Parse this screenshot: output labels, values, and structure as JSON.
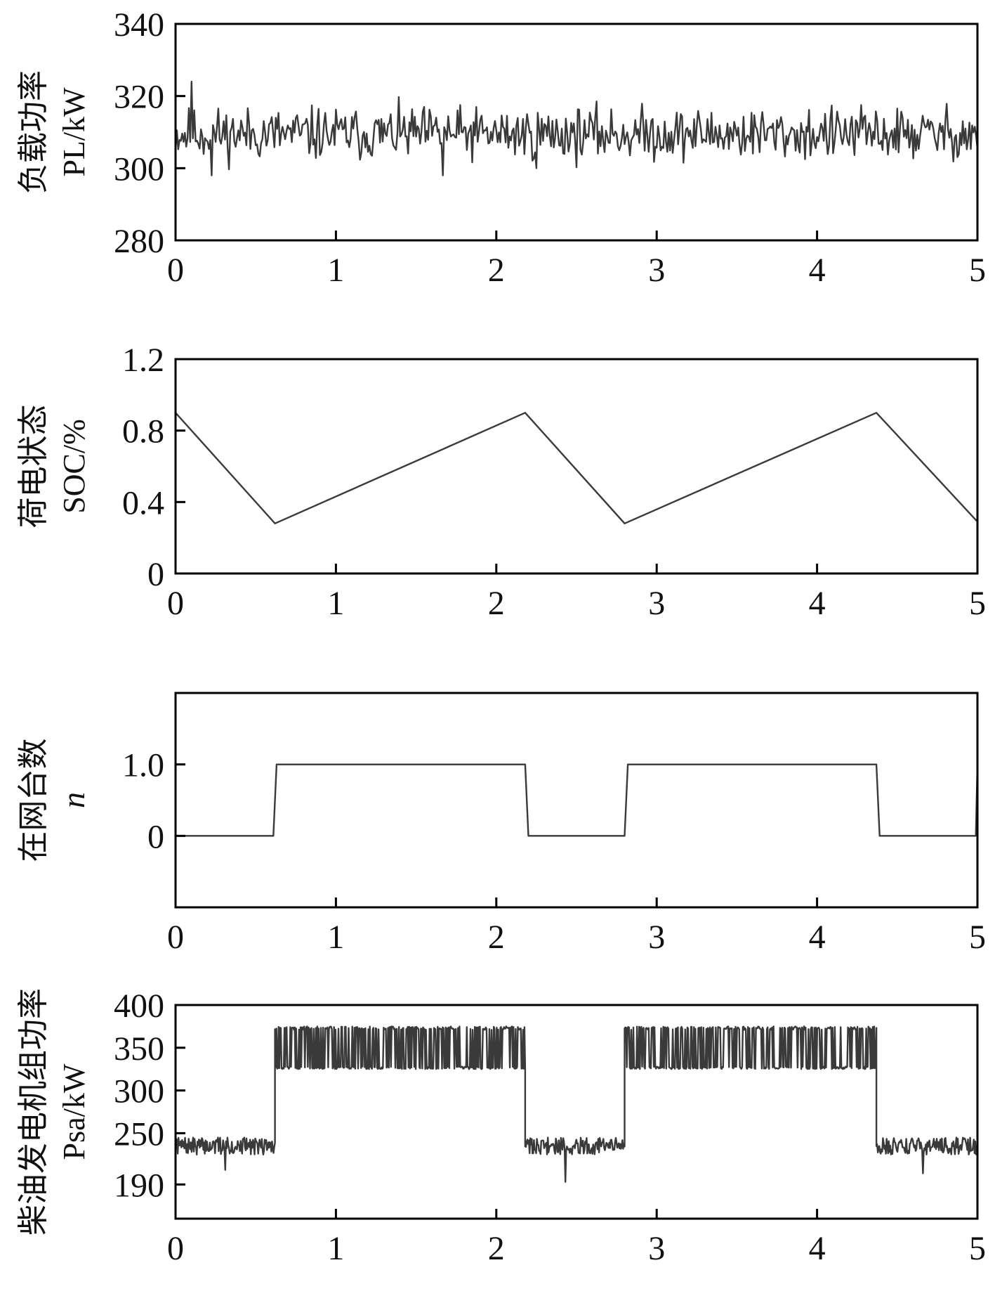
{
  "chart_data": [
    {
      "type": "line",
      "id": "load",
      "ylabel_cn": "负载功率",
      "ylabel_en": "PL/kW",
      "ylabel_italic": false,
      "xlim": [
        0,
        5
      ],
      "ylim": [
        280,
        340
      ],
      "xticks": [
        0,
        1,
        2,
        3,
        4,
        5
      ],
      "yticks": [
        280,
        300,
        320,
        340
      ],
      "ytick_labels": [
        "280",
        "300",
        "320",
        "340"
      ],
      "color": "#3a3a3a",
      "noise": {
        "base": 309.5,
        "amp": 5.5,
        "seed": 11,
        "samples": 600
      },
      "series": []
    },
    {
      "type": "line",
      "id": "soc",
      "ylabel_cn": "荷电状态",
      "ylabel_en": "SOC/%",
      "ylabel_italic": false,
      "xlim": [
        0,
        5
      ],
      "ylim": [
        0,
        1.2
      ],
      "xticks": [
        0,
        1,
        2,
        3,
        4,
        5
      ],
      "yticks": [
        0,
        0.4,
        0.8,
        1.2
      ],
      "ytick_labels": [
        "0",
        "0.4",
        "0.8",
        "1.2"
      ],
      "color": "#3a3a3a",
      "series": [
        {
          "x": [
            0,
            0.62,
            2.18,
            2.8,
            4.37,
            5.0
          ],
          "y": [
            0.9,
            0.28,
            0.9,
            0.28,
            0.9,
            0.29
          ]
        }
      ]
    },
    {
      "type": "line",
      "id": "units",
      "ylabel_cn": "在网台数",
      "ylabel_en": "n",
      "ylabel_italic": true,
      "xlim": [
        0,
        5
      ],
      "ylim": [
        -1,
        2
      ],
      "xticks": [
        0,
        1,
        2,
        3,
        4,
        5
      ],
      "yticks": [
        0,
        1.0
      ],
      "ytick_labels": [
        "0",
        "1.0"
      ],
      "color": "#3a3a3a",
      "series": [
        {
          "x": [
            0,
            0.61,
            0.63,
            2.18,
            2.2,
            2.8,
            2.82,
            4.37,
            4.39,
            4.99,
            5.0
          ],
          "y": [
            0,
            0,
            1,
            1,
            0,
            0,
            1,
            1,
            0,
            0,
            1
          ]
        }
      ]
    },
    {
      "type": "line",
      "id": "diesel",
      "ylabel_cn": "柴油发电机组功率",
      "ylabel_en": "Psa/kW",
      "ylabel_italic": false,
      "xlim": [
        0,
        5
      ],
      "ylim": [
        150,
        400
      ],
      "xticks": [
        0,
        1,
        2,
        3,
        4,
        5
      ],
      "yticks": [
        190,
        250,
        300,
        350,
        400
      ],
      "ytick_labels": [
        "190",
        "250",
        "300",
        "350",
        "400"
      ],
      "color": "#3a3a3a",
      "segments": [
        {
          "x0": 0.0,
          "x1": 0.62,
          "low": 225,
          "high": 245,
          "dips": [
            [
              0.31,
              207
            ]
          ]
        },
        {
          "x0": 0.62,
          "x1": 2.18,
          "low": 325,
          "high": 375,
          "dips": []
        },
        {
          "x0": 2.18,
          "x1": 2.8,
          "low": 225,
          "high": 245,
          "dips": [
            [
              2.43,
              193
            ]
          ]
        },
        {
          "x0": 2.8,
          "x1": 4.37,
          "low": 325,
          "high": 375,
          "dips": []
        },
        {
          "x0": 4.37,
          "x1": 5.0,
          "low": 225,
          "high": 245,
          "dips": [
            [
              4.66,
              203
            ]
          ]
        }
      ],
      "series": []
    }
  ]
}
